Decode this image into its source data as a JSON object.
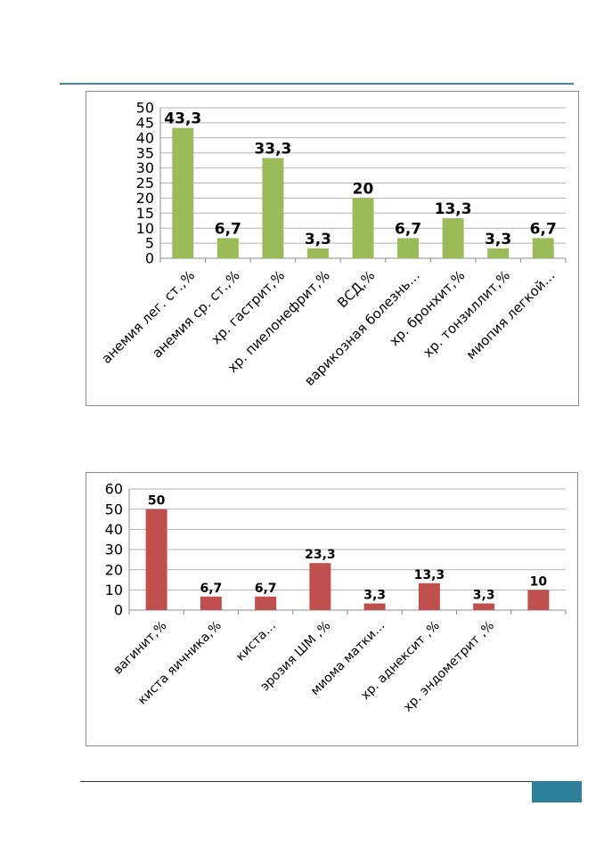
{
  "chart_data": [
    {
      "type": "bar",
      "color": "#9bbb59",
      "categories": [
        "анемия лег. ст.,%",
        "анемия ср. ст.,%",
        "хр. гастрит,%",
        "хр. пиелонефрит,%",
        "ВСД,%",
        "варикозная болезнь…",
        "хр. бронхит,%",
        "хр. тонзиллит,%",
        "миопия легкой…"
      ],
      "values": [
        43.3,
        6.7,
        33.3,
        3.3,
        20,
        6.7,
        13.3,
        3.3,
        6.7
      ],
      "value_labels": [
        "43,3",
        "6,7",
        "33,3",
        "3,3",
        "20",
        "6,7",
        "13,3",
        "3,3",
        "6,7"
      ],
      "yticks": [
        0,
        5,
        10,
        15,
        20,
        25,
        30,
        35,
        40,
        45,
        50
      ],
      "ylim": [
        0,
        50
      ],
      "grid": true
    },
    {
      "type": "bar",
      "color": "#c0504d",
      "categories": [
        "вагинит,%",
        "киста яичника,%",
        "киста…",
        "эрозия ШМ ,%",
        "миома матки…",
        "хр. аднексит ,%",
        "хр. эндометрит ,%",
        ""
      ],
      "values": [
        50,
        6.7,
        6.7,
        23.3,
        3.3,
        13.3,
        3.3,
        10
      ],
      "value_labels": [
        "50",
        "6,7",
        "6,7",
        "23,3",
        "3,3",
        "13,3",
        "3,3",
        "10"
      ],
      "yticks": [
        0,
        10,
        20,
        30,
        40,
        50,
        60
      ],
      "ylim": [
        0,
        60
      ],
      "grid": true
    }
  ]
}
